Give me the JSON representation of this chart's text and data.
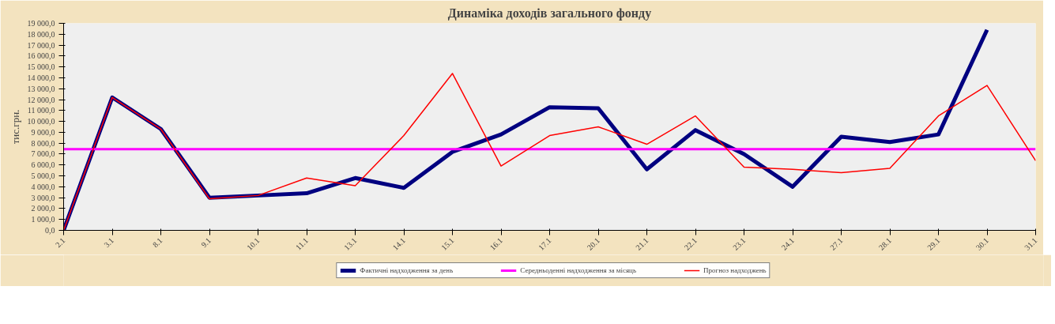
{
  "chart_data": {
    "type": "line",
    "title": "Динаміка доходів загального фонду",
    "ylabel": "тис.грн.",
    "categories": [
      "2.1",
      "3.1",
      "8.1",
      "9.1",
      "10.1",
      "11.1",
      "13.1",
      "14.1",
      "15.1",
      "16.1",
      "17.1",
      "20.1",
      "21.1",
      "22.1",
      "23.1",
      "24.1",
      "27.1",
      "28.1",
      "29.1",
      "30.1",
      "31.1"
    ],
    "series": [
      {
        "name": "Фактичні надходження за день",
        "color": "#000080",
        "values": [
          0,
          12200,
          9300,
          3000,
          3200,
          3400,
          4800,
          3900,
          7200,
          8800,
          11300,
          11200,
          5600,
          9200,
          7000,
          4000,
          8600,
          8100,
          8800,
          18400,
          null
        ]
      },
      {
        "name": "Середньоденні надходження за місяць",
        "color": "#ff00ff",
        "values": [
          7450,
          7450,
          7450,
          7450,
          7450,
          7450,
          7450,
          7450,
          7450,
          7450,
          7450,
          7450,
          7450,
          7450,
          7450,
          7450,
          7450,
          7450,
          7450,
          7450,
          7450
        ]
      },
      {
        "name": "Прогноз надходжень",
        "color": "#ff0000",
        "values": [
          0,
          12200,
          9300,
          2900,
          3200,
          4800,
          4100,
          8700,
          14400,
          5900,
          8700,
          9500,
          7900,
          10500,
          5800,
          5600,
          5300,
          5700,
          10500,
          13300,
          6400
        ]
      }
    ],
    "ylim": [
      0,
      19000
    ],
    "yticks": [
      {
        "value": 0,
        "label": "0,0"
      },
      {
        "value": 1000,
        "label": "1 000,0"
      },
      {
        "value": 2000,
        "label": "2 000,0"
      },
      {
        "value": 3000,
        "label": "3 000,0"
      },
      {
        "value": 4000,
        "label": "4 000,0"
      },
      {
        "value": 5000,
        "label": "5 000,0"
      },
      {
        "value": 6000,
        "label": "6 000,0"
      },
      {
        "value": 7000,
        "label": "7 000,0"
      },
      {
        "value": 8000,
        "label": "8 000,0"
      },
      {
        "value": 9000,
        "label": "9 000,0"
      },
      {
        "value": 10000,
        "label": "10 000,0"
      },
      {
        "value": 11000,
        "label": "11 000,0"
      },
      {
        "value": 12000,
        "label": "12 000,0"
      },
      {
        "value": 13000,
        "label": "13 000,0"
      },
      {
        "value": 14000,
        "label": "14 000,0"
      },
      {
        "value": 15000,
        "label": "15 000,0"
      },
      {
        "value": 16000,
        "label": "16 000,0"
      },
      {
        "value": 17000,
        "label": "17 000,0"
      },
      {
        "value": 18000,
        "label": "18 000,0"
      },
      {
        "value": 19000,
        "label": "19 000,0"
      }
    ],
    "grid": false,
    "legend": "bottom",
    "marker": "none",
    "line_style": "solid"
  }
}
